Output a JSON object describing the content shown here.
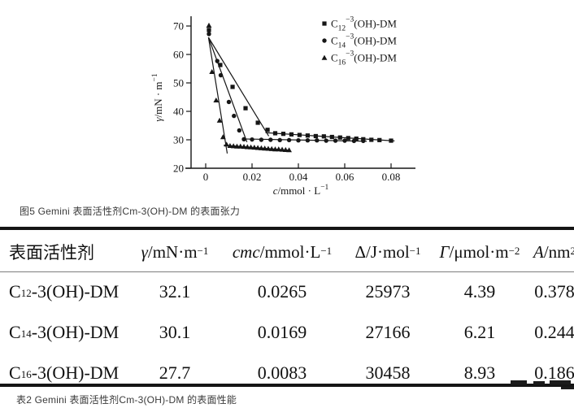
{
  "figure_caption": "图5 Gemini 表面活性剂Cm-3(OH)-DM 的表面张力",
  "table_caption": "表2 Gemini 表面活性剂Cm-3(OH)-DM 的表面性能",
  "chart_data": {
    "type": "scatter",
    "title": "",
    "xlabel": {
      "italic": "c",
      "main": "/mmol · L",
      "sup": "−1"
    },
    "ylabel": {
      "italic": "γ",
      "main": "/mN · m",
      "sup": "−1"
    },
    "xlim": [
      -0.006,
      0.088
    ],
    "ylim": [
      20,
      73
    ],
    "grid": false,
    "legend_position": "top-right",
    "x_ticks": [
      0,
      0.02,
      0.04,
      0.06,
      0.08
    ],
    "x_tick_labels": [
      "0",
      "0.02",
      "0.04",
      "0.06",
      "0.08"
    ],
    "y_ticks": [
      20,
      30,
      40,
      50,
      60,
      70
    ],
    "y_tick_labels": [
      "20",
      "30",
      "40",
      "50",
      "60",
      "70"
    ],
    "series": [
      {
        "name": "C12-3(OH)-DM",
        "label": {
          "base": "C",
          "sub": "12",
          "sup": "−3",
          "rest": "(OH)-DM"
        },
        "marker": "square",
        "cmc": 0.0265,
        "points": [
          [
            0.0014,
            68.6
          ],
          [
            0.0063,
            56.3
          ],
          [
            0.0116,
            48.6
          ],
          [
            0.0172,
            41.1
          ],
          [
            0.0225,
            36.0
          ],
          [
            0.0267,
            33.5
          ],
          [
            0.03,
            32.3
          ],
          [
            0.0335,
            32.1
          ],
          [
            0.037,
            31.9
          ],
          [
            0.0405,
            31.7
          ],
          [
            0.044,
            31.5
          ],
          [
            0.0475,
            31.3
          ],
          [
            0.051,
            31.2
          ],
          [
            0.0545,
            31.0
          ],
          [
            0.058,
            30.8
          ],
          [
            0.0615,
            30.6
          ],
          [
            0.065,
            30.4
          ],
          [
            0.068,
            30.2
          ],
          [
            0.0715,
            30.0
          ],
          [
            0.075,
            29.9
          ],
          [
            0.08,
            29.7
          ]
        ],
        "fit_lines": [
          [
            [
              0.0012,
              66.0
            ],
            [
              0.0272,
              31.3
            ]
          ],
          [
            [
              0.0258,
              32.5
            ],
            [
              0.0815,
              29.6
            ]
          ]
        ]
      },
      {
        "name": "C14-3(OH)-DM",
        "label": {
          "base": "C",
          "sub": "14",
          "sup": "−3",
          "rest": "(OH)-DM"
        },
        "marker": "circle",
        "cmc": 0.0169,
        "points": [
          [
            0.0014,
            67.2
          ],
          [
            0.005,
            57.7
          ],
          [
            0.0065,
            52.7
          ],
          [
            0.01,
            43.3
          ],
          [
            0.0122,
            38.4
          ],
          [
            0.0145,
            33.3
          ],
          [
            0.0165,
            30.2
          ],
          [
            0.02,
            30.1
          ],
          [
            0.024,
            30.0
          ],
          [
            0.028,
            30.0
          ],
          [
            0.032,
            29.9
          ],
          [
            0.036,
            29.9
          ],
          [
            0.04,
            29.8
          ],
          [
            0.044,
            29.8
          ],
          [
            0.048,
            29.8
          ],
          [
            0.052,
            29.7
          ],
          [
            0.056,
            29.7
          ],
          [
            0.06,
            29.7
          ],
          [
            0.064,
            29.6
          ],
          [
            0.068,
            29.6
          ]
        ],
        "fit_lines": [
          [
            [
              0.0012,
              66.0
            ],
            [
              0.0178,
              29.2
            ]
          ],
          [
            [
              0.016,
              30.3
            ],
            [
              0.0695,
              29.5
            ]
          ]
        ]
      },
      {
        "name": "C16-3(OH)-DM",
        "label": {
          "base": "C",
          "sub": "16",
          "sup": "−3",
          "rest": "(OH)-DM"
        },
        "marker": "triangle",
        "cmc": 0.0083,
        "points": [
          [
            0.0014,
            70.2
          ],
          [
            0.0027,
            53.9
          ],
          [
            0.0045,
            43.9
          ],
          [
            0.006,
            36.8
          ],
          [
            0.0075,
            31.0
          ],
          [
            0.009,
            28.4
          ],
          [
            0.0105,
            27.9
          ],
          [
            0.012,
            27.8
          ],
          [
            0.0135,
            27.7
          ],
          [
            0.015,
            27.7
          ],
          [
            0.0165,
            27.6
          ],
          [
            0.018,
            27.5
          ],
          [
            0.0195,
            27.4
          ],
          [
            0.021,
            27.3
          ],
          [
            0.0225,
            27.2
          ],
          [
            0.024,
            27.1
          ],
          [
            0.0255,
            27.0
          ],
          [
            0.027,
            26.9
          ],
          [
            0.0285,
            26.8
          ],
          [
            0.03,
            26.7
          ],
          [
            0.0315,
            26.7
          ],
          [
            0.033,
            26.6
          ],
          [
            0.0345,
            26.5
          ],
          [
            0.036,
            26.4
          ]
        ],
        "fit_lines": [
          [
            [
              0.0012,
              66.0
            ],
            [
              0.0093,
              25.2
            ]
          ],
          [
            [
              0.0078,
              28.1
            ],
            [
              0.0365,
              26.3
            ]
          ]
        ]
      }
    ]
  },
  "table": {
    "columns": [
      {
        "italic": "",
        "main": "表面活性剂",
        "sup": ""
      },
      {
        "italic": "γ",
        "main": "/mN·m",
        "sup": "−1"
      },
      {
        "italic": "cmc",
        "main": "/mmol·L",
        "sup": "−1"
      },
      {
        "italic": "",
        "main": "Δ/J·mol",
        "sup": "−1"
      },
      {
        "italic": "Γ",
        "main": "/μmol·m",
        "sup": "−2"
      },
      {
        "italic": "A",
        "main": "/nm",
        "sup": "2"
      }
    ],
    "rows": [
      {
        "name": {
          "base": "C",
          "sub": "12",
          "rest": "-3(OH)-DM"
        },
        "values": [
          "32.1",
          "0.0265",
          "25973",
          "4.39",
          "0.378"
        ]
      },
      {
        "name": {
          "base": "C",
          "sub": "14",
          "rest": "-3(OH)-DM"
        },
        "values": [
          "30.1",
          "0.0169",
          "27166",
          "6.21",
          "0.244"
        ]
      },
      {
        "name": {
          "base": "C",
          "sub": "16",
          "rest": "-3(OH)-DM"
        },
        "values": [
          "27.7",
          "0.0083",
          "30458",
          "8.93",
          "0.186"
        ]
      }
    ]
  }
}
